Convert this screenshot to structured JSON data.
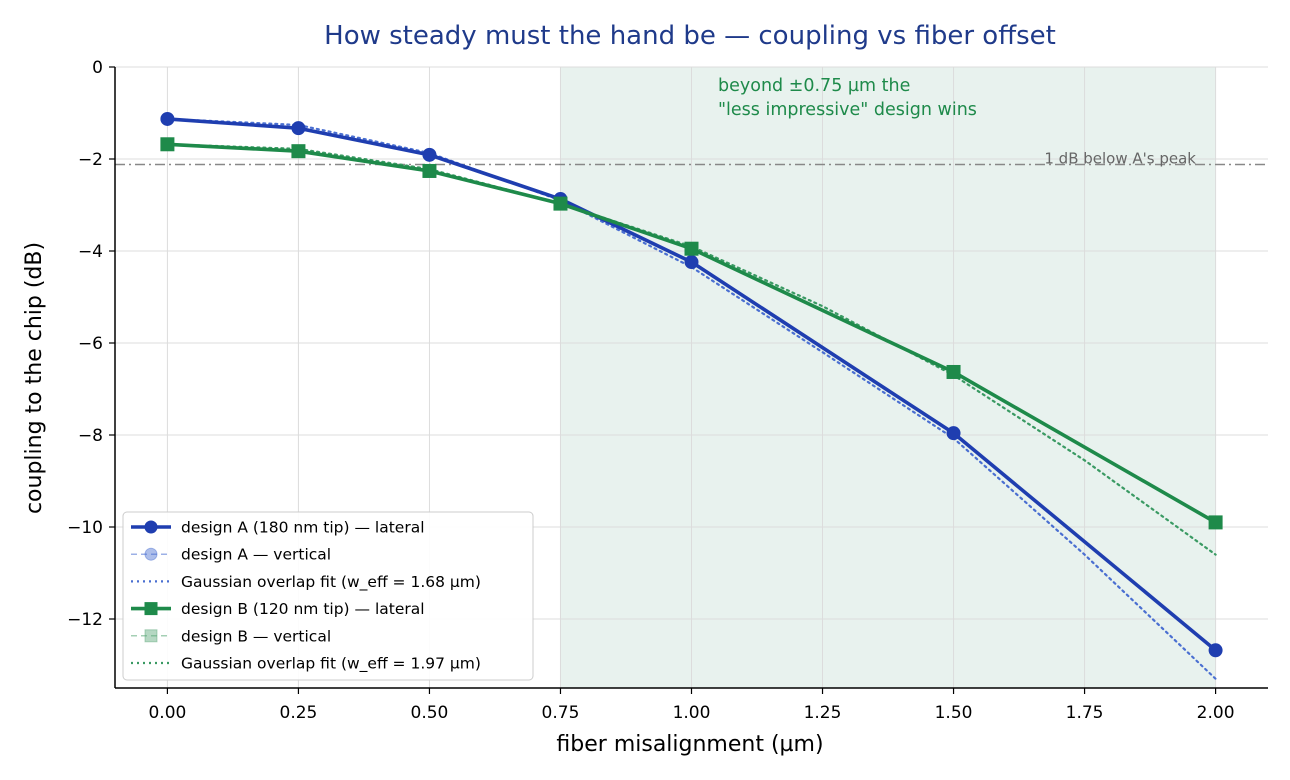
{
  "chart_data": {
    "type": "line",
    "title": "How steady must the hand be — coupling vs fiber offset",
    "xlabel": "fiber misalignment (µm)",
    "ylabel": "coupling to the chip (dB)",
    "xlim": [
      -0.1,
      2.1
    ],
    "ylim": [
      -13.5,
      0
    ],
    "x_ticks": [
      0.0,
      0.25,
      0.5,
      0.75,
      1.0,
      1.25,
      1.5,
      1.75,
      2.0
    ],
    "x_tick_labels": [
      "0.00",
      "0.25",
      "0.50",
      "0.75",
      "1.00",
      "1.25",
      "1.50",
      "1.75",
      "2.00"
    ],
    "y_ticks": [
      0,
      -2,
      -4,
      -6,
      -8,
      -10,
      -12
    ],
    "y_tick_labels": [
      "0",
      "−2",
      "−4",
      "−6",
      "−8",
      "−10",
      "−12"
    ],
    "grid": true,
    "shaded_region": {
      "x_from": 0.75,
      "x_to": 2.0,
      "color": "#e8f2ee"
    },
    "reference_line": {
      "y": -2.12,
      "label": "1 dB below A's peak",
      "color": "#888888"
    },
    "annotation": {
      "lines": [
        "beyond ±0.75 µm the",
        "\"less impressive\" design wins"
      ],
      "color": "#1e8a4a"
    },
    "legend_position": "lower-left",
    "series": [
      {
        "name": "design A (180 nm tip) — lateral",
        "color": "#1f3eb0",
        "style": "solid",
        "marker": "circle",
        "x": [
          0,
          0.25,
          0.5,
          0.75,
          1.0,
          1.5,
          2.0
        ],
        "y": [
          -1.13,
          -1.33,
          -1.91,
          -2.87,
          -4.24,
          -7.96,
          -12.68
        ]
      },
      {
        "name": "design A — vertical",
        "color": "#4a6fd1",
        "style": "dashed",
        "marker": "circle",
        "x": [
          0,
          0.25,
          0.5,
          0.75,
          1.0,
          1.5,
          2.0
        ],
        "y": [
          -1.13,
          -1.33,
          -1.91,
          -2.87,
          -4.24,
          -7.96,
          -12.68
        ]
      },
      {
        "name": "Gaussian overlap fit (w_eff = 1.68 µm)",
        "color": "#4a6fd1",
        "style": "dotted",
        "marker": "none",
        "x": [
          0,
          0.25,
          0.5,
          0.75,
          1.0,
          1.25,
          1.5,
          1.75,
          2.0
        ],
        "y": [
          -1.13,
          -1.26,
          -1.87,
          -2.9,
          -4.35,
          -6.2,
          -8.07,
          -10.6,
          -13.3
        ]
      },
      {
        "name": "design B (120 nm tip) — lateral",
        "color": "#1e8a4a",
        "style": "solid",
        "marker": "square",
        "x": [
          0,
          0.25,
          0.5,
          0.75,
          1.0,
          1.5,
          2.0
        ],
        "y": [
          -1.68,
          -1.83,
          -2.26,
          -2.97,
          -3.95,
          -6.63,
          -9.9
        ]
      },
      {
        "name": "design B — vertical",
        "color": "#5aa777",
        "style": "dashed",
        "marker": "square",
        "x": [
          0,
          0.25,
          0.5,
          0.75,
          1.0,
          1.5,
          2.0
        ],
        "y": [
          -1.68,
          -1.83,
          -2.26,
          -2.97,
          -3.95,
          -6.63,
          -9.9
        ]
      },
      {
        "name": "Gaussian overlap fit (w_eff = 1.97 µm)",
        "color": "#3a9a63",
        "style": "dotted",
        "marker": "none",
        "x": [
          0,
          0.25,
          0.5,
          0.75,
          1.0,
          1.25,
          1.5,
          1.75,
          2.0
        ],
        "y": [
          -1.68,
          -1.78,
          -2.22,
          -2.97,
          -3.9,
          -5.2,
          -6.7,
          -8.55,
          -10.6
        ]
      }
    ]
  }
}
